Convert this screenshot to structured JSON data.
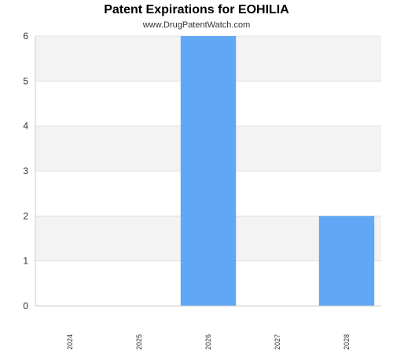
{
  "header": {
    "title": "Patent Expirations for EOHILIA",
    "subtitle": "www.DrugPatentWatch.com"
  },
  "chart_data": {
    "type": "bar",
    "title": "Patent Expirations for EOHILIA",
    "subtitle": "www.DrugPatentWatch.com",
    "categories": [
      "2024",
      "2025",
      "2026",
      "2027",
      "2028"
    ],
    "values": [
      0,
      0,
      6,
      0,
      2
    ],
    "xlabel": "",
    "ylabel": "",
    "ylim": [
      0,
      6
    ],
    "yticks": [
      "0",
      "1",
      "2",
      "3",
      "4",
      "5",
      "6"
    ],
    "grid": true,
    "bar_color": "#60a8f5",
    "band_color": "#f3f3f3",
    "legend": "none"
  }
}
